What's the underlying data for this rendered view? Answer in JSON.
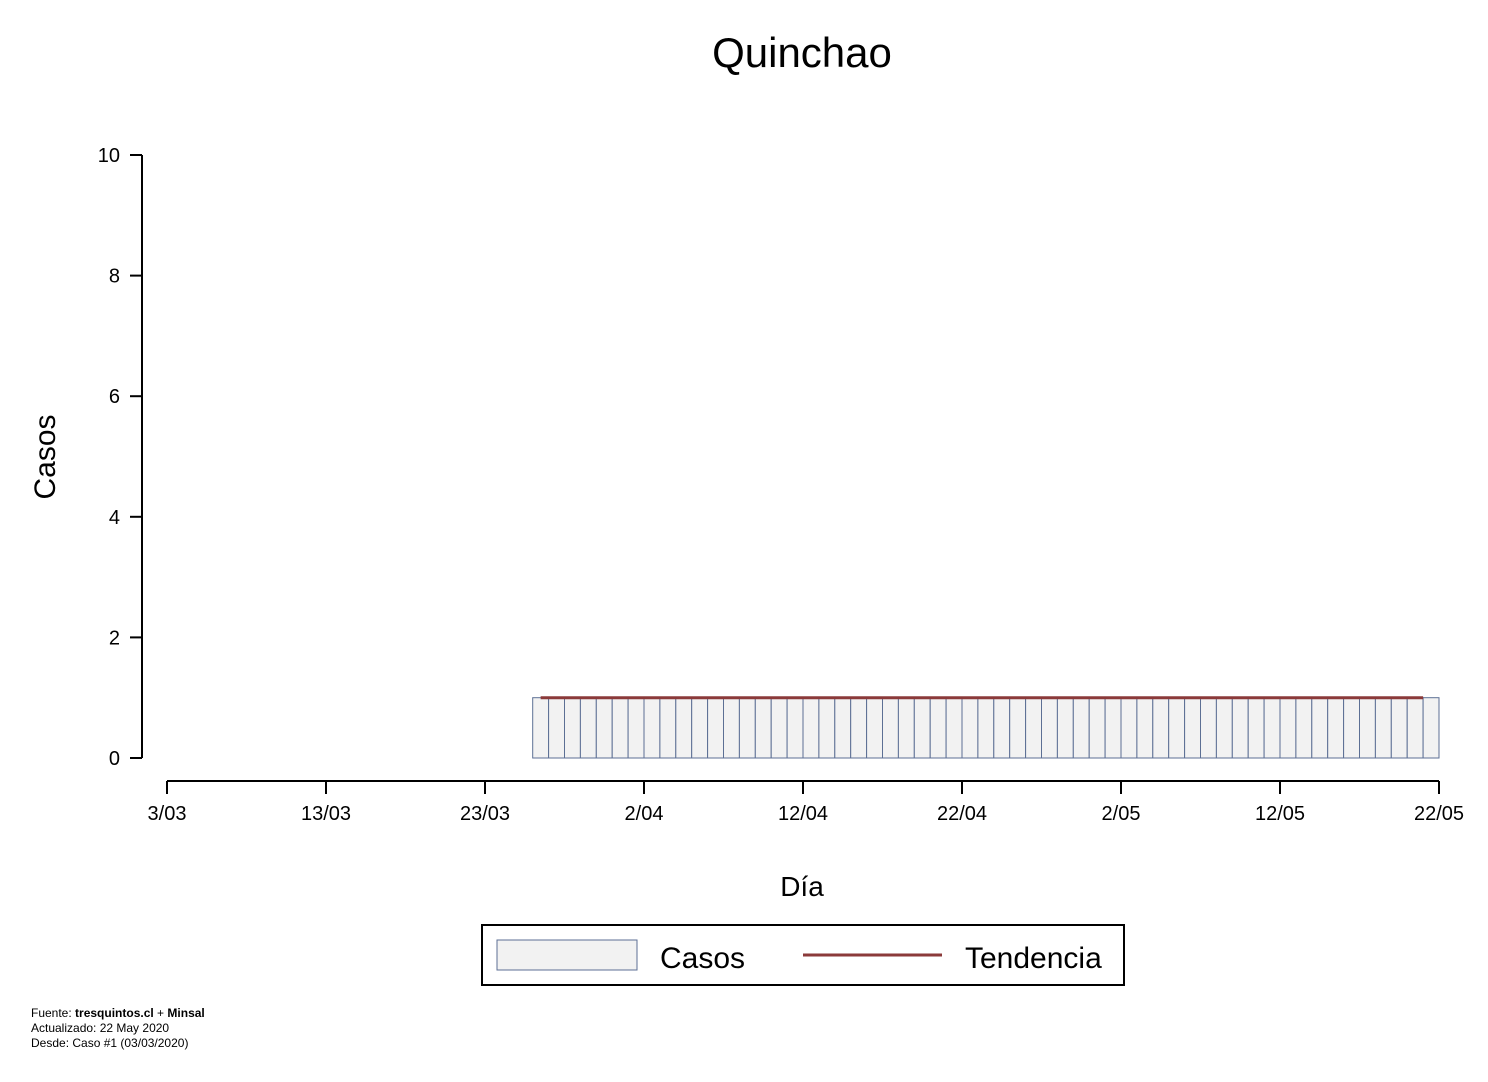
{
  "chart_data": {
    "type": "bar",
    "title": "Quinchao",
    "xlabel": "Día",
    "ylabel": "Casos",
    "ylim": [
      0,
      10
    ],
    "yticks": [
      0,
      2,
      4,
      6,
      8,
      10
    ],
    "x_start": "3/03",
    "x_end": "22/05",
    "xticks": [
      "3/03",
      "13/03",
      "23/03",
      "2/04",
      "12/04",
      "22/04",
      "2/05",
      "12/05",
      "22/05"
    ],
    "bars": {
      "name": "Casos",
      "first_day": "27/03",
      "last_day": "22/05",
      "value": 1,
      "fill": "#f2f2f2",
      "stroke": "#5c6f94"
    },
    "trend": {
      "name": "Tendencia",
      "from": "27/03",
      "to": "21/05",
      "value": 1,
      "color": "#8b3a3a"
    },
    "legend": [
      "Casos",
      "Tendencia"
    ],
    "legend_position": "bottom-center",
    "grid": false
  },
  "footer": {
    "source_prefix": "Fuente: ",
    "source_site": "tresquintos.cl",
    "source_join": " + ",
    "source_org": "Minsal",
    "updated": "Actualizado: 22 May 2020",
    "since": "Desde: Caso #1  (03/03/2020)"
  }
}
